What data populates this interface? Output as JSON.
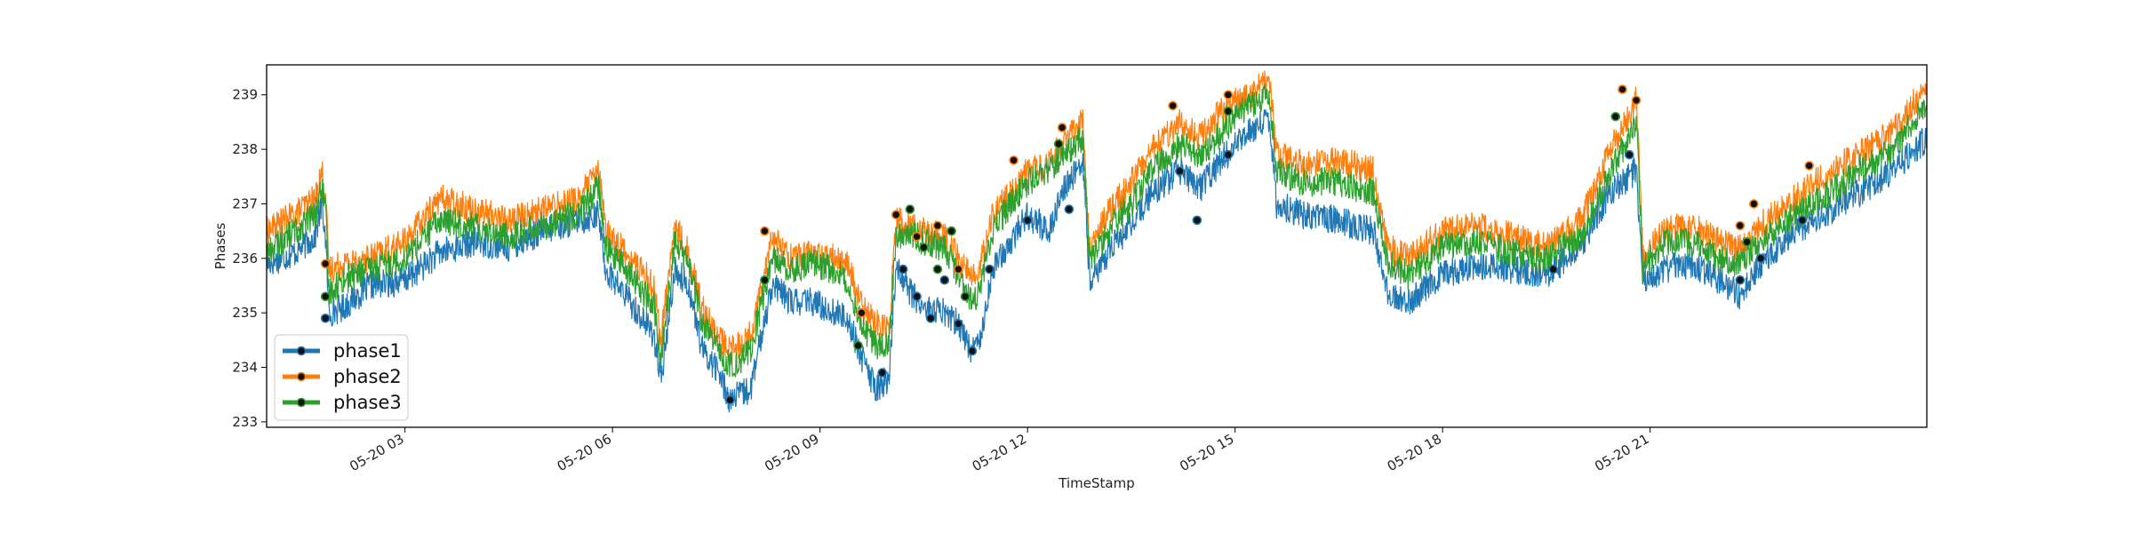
{
  "chart_data": {
    "type": "line",
    "title": "",
    "xlabel": "TimeStamp",
    "ylabel": "Phases",
    "x_range": [
      "05-20 00:00",
      "05-20 23:59"
    ],
    "xlim_hours": [
      1,
      25
    ],
    "ylim": [
      232.9,
      239.55
    ],
    "y_ticks": [
      233,
      234,
      235,
      236,
      237,
      238,
      239
    ],
    "x_ticks": [
      {
        "label": "05-20 03",
        "hour": 3
      },
      {
        "label": "05-20 06",
        "hour": 6
      },
      {
        "label": "05-20 09",
        "hour": 9
      },
      {
        "label": "05-20 12",
        "hour": 12
      },
      {
        "label": "05-20 15",
        "hour": 15
      },
      {
        "label": "05-20 18",
        "hour": 18
      },
      {
        "label": "05-20 21",
        "hour": 21
      }
    ],
    "legend_position": "bottom-left",
    "grid": false,
    "series": [
      {
        "name": "phase1",
        "color": "#1f77b4",
        "values": [
          [
            1.0,
            235.9
          ],
          [
            1.4,
            236.1
          ],
          [
            1.7,
            236.4
          ],
          [
            1.8,
            237.0
          ],
          [
            1.85,
            236.4
          ],
          [
            1.9,
            235.0
          ],
          [
            2.1,
            235.1
          ],
          [
            2.5,
            235.5
          ],
          [
            3.0,
            235.6
          ],
          [
            3.5,
            236.1
          ],
          [
            4.0,
            236.3
          ],
          [
            4.5,
            236.2
          ],
          [
            5.0,
            236.5
          ],
          [
            5.5,
            236.7
          ],
          [
            5.8,
            236.8
          ],
          [
            5.9,
            235.8
          ],
          [
            6.2,
            235.3
          ],
          [
            6.6,
            234.6
          ],
          [
            6.7,
            233.7
          ],
          [
            6.9,
            235.8
          ],
          [
            7.1,
            235.5
          ],
          [
            7.3,
            234.3
          ],
          [
            7.5,
            234.0
          ],
          [
            7.7,
            233.4
          ],
          [
            8.0,
            233.6
          ],
          [
            8.3,
            235.5
          ],
          [
            8.6,
            235.2
          ],
          [
            8.9,
            235.2
          ],
          [
            9.2,
            235.0
          ],
          [
            9.4,
            234.9
          ],
          [
            9.6,
            234.2
          ],
          [
            9.8,
            233.6
          ],
          [
            10.0,
            233.8
          ],
          [
            10.1,
            235.9
          ],
          [
            10.3,
            235.4
          ],
          [
            10.5,
            235.1
          ],
          [
            10.8,
            235.0
          ],
          [
            11.0,
            234.8
          ],
          [
            11.2,
            234.3
          ],
          [
            11.3,
            234.5
          ],
          [
            11.5,
            235.8
          ],
          [
            11.7,
            236.2
          ],
          [
            12.0,
            236.8
          ],
          [
            12.3,
            236.5
          ],
          [
            12.5,
            237.2
          ],
          [
            12.8,
            237.8
          ],
          [
            12.9,
            235.5
          ],
          [
            13.2,
            236.2
          ],
          [
            13.5,
            236.6
          ],
          [
            13.8,
            237.2
          ],
          [
            14.2,
            237.6
          ],
          [
            14.5,
            237.3
          ],
          [
            14.8,
            237.8
          ],
          [
            15.2,
            238.3
          ],
          [
            15.5,
            238.6
          ],
          [
            15.6,
            237.0
          ],
          [
            16.0,
            236.8
          ],
          [
            16.5,
            236.7
          ],
          [
            17.0,
            236.5
          ],
          [
            17.2,
            235.4
          ],
          [
            17.5,
            235.2
          ],
          [
            18.0,
            235.7
          ],
          [
            18.5,
            235.9
          ],
          [
            19.0,
            235.8
          ],
          [
            19.5,
            235.7
          ],
          [
            20.0,
            236.2
          ],
          [
            20.4,
            237.2
          ],
          [
            20.8,
            237.6
          ],
          [
            20.9,
            235.6
          ],
          [
            21.2,
            235.8
          ],
          [
            21.6,
            235.9
          ],
          [
            22.0,
            235.6
          ],
          [
            22.3,
            235.3
          ],
          [
            22.6,
            235.9
          ],
          [
            23.0,
            236.4
          ],
          [
            23.5,
            236.8
          ],
          [
            24.0,
            237.2
          ],
          [
            24.5,
            237.6
          ],
          [
            25.0,
            238.2
          ]
        ]
      },
      {
        "name": "phase2",
        "color": "#ff7f0e",
        "values": [
          [
            1.0,
            236.5
          ],
          [
            1.4,
            236.8
          ],
          [
            1.7,
            237.1
          ],
          [
            1.8,
            237.6
          ],
          [
            1.85,
            237.2
          ],
          [
            1.9,
            235.8
          ],
          [
            2.1,
            235.9
          ],
          [
            2.5,
            236.0
          ],
          [
            3.0,
            236.3
          ],
          [
            3.5,
            237.1
          ],
          [
            4.0,
            236.9
          ],
          [
            4.5,
            236.7
          ],
          [
            5.0,
            236.9
          ],
          [
            5.5,
            237.1
          ],
          [
            5.8,
            237.6
          ],
          [
            5.9,
            236.5
          ],
          [
            6.2,
            236.1
          ],
          [
            6.6,
            235.5
          ],
          [
            6.7,
            234.5
          ],
          [
            6.9,
            236.6
          ],
          [
            7.1,
            236.1
          ],
          [
            7.3,
            235.1
          ],
          [
            7.5,
            234.6
          ],
          [
            7.7,
            234.3
          ],
          [
            8.0,
            234.6
          ],
          [
            8.3,
            236.4
          ],
          [
            8.6,
            236.0
          ],
          [
            8.9,
            236.1
          ],
          [
            9.2,
            236.0
          ],
          [
            9.4,
            235.9
          ],
          [
            9.6,
            235.1
          ],
          [
            9.8,
            234.8
          ],
          [
            10.0,
            234.8
          ],
          [
            10.1,
            236.7
          ],
          [
            10.3,
            236.6
          ],
          [
            10.5,
            236.5
          ],
          [
            10.8,
            236.4
          ],
          [
            11.0,
            236.0
          ],
          [
            11.2,
            235.6
          ],
          [
            11.3,
            235.8
          ],
          [
            11.5,
            236.8
          ],
          [
            11.7,
            237.1
          ],
          [
            12.0,
            237.6
          ],
          [
            12.3,
            237.7
          ],
          [
            12.5,
            238.1
          ],
          [
            12.8,
            238.5
          ],
          [
            12.9,
            236.2
          ],
          [
            13.2,
            236.9
          ],
          [
            13.5,
            237.4
          ],
          [
            13.8,
            238.0
          ],
          [
            14.2,
            238.5
          ],
          [
            14.5,
            238.2
          ],
          [
            14.8,
            238.7
          ],
          [
            15.2,
            239.0
          ],
          [
            15.5,
            239.3
          ],
          [
            15.6,
            237.9
          ],
          [
            16.0,
            237.7
          ],
          [
            16.5,
            237.8
          ],
          [
            17.0,
            237.6
          ],
          [
            17.2,
            236.2
          ],
          [
            17.5,
            236.0
          ],
          [
            18.0,
            236.5
          ],
          [
            18.5,
            236.6
          ],
          [
            19.0,
            236.4
          ],
          [
            19.5,
            236.2
          ],
          [
            20.0,
            236.7
          ],
          [
            20.4,
            237.9
          ],
          [
            20.8,
            238.9
          ],
          [
            20.9,
            236.0
          ],
          [
            21.2,
            236.5
          ],
          [
            21.6,
            236.6
          ],
          [
            22.0,
            236.3
          ],
          [
            22.3,
            236.2
          ],
          [
            22.6,
            236.6
          ],
          [
            23.0,
            237.0
          ],
          [
            23.5,
            237.5
          ],
          [
            24.0,
            237.9
          ],
          [
            24.5,
            238.3
          ],
          [
            25.0,
            239.2
          ]
        ]
      },
      {
        "name": "phase3",
        "color": "#2ca02c",
        "values": [
          [
            1.0,
            236.1
          ],
          [
            1.4,
            236.5
          ],
          [
            1.7,
            236.8
          ],
          [
            1.8,
            237.3
          ],
          [
            1.85,
            236.9
          ],
          [
            1.9,
            235.4
          ],
          [
            2.1,
            235.6
          ],
          [
            2.5,
            235.8
          ],
          [
            3.0,
            236.0
          ],
          [
            3.5,
            236.7
          ],
          [
            4.0,
            236.6
          ],
          [
            4.5,
            236.4
          ],
          [
            5.0,
            236.6
          ],
          [
            5.5,
            236.8
          ],
          [
            5.8,
            237.3
          ],
          [
            5.9,
            236.2
          ],
          [
            6.2,
            235.8
          ],
          [
            6.6,
            235.1
          ],
          [
            6.7,
            234.1
          ],
          [
            6.9,
            236.3
          ],
          [
            7.1,
            235.9
          ],
          [
            7.3,
            234.8
          ],
          [
            7.5,
            234.4
          ],
          [
            7.7,
            234.0
          ],
          [
            8.0,
            234.3
          ],
          [
            8.3,
            236.0
          ],
          [
            8.6,
            235.8
          ],
          [
            8.9,
            235.9
          ],
          [
            9.2,
            235.8
          ],
          [
            9.4,
            235.6
          ],
          [
            9.6,
            234.8
          ],
          [
            9.8,
            234.4
          ],
          [
            10.0,
            234.5
          ],
          [
            10.1,
            236.4
          ],
          [
            10.3,
            236.5
          ],
          [
            10.5,
            236.3
          ],
          [
            10.8,
            236.2
          ],
          [
            11.0,
            235.7
          ],
          [
            11.2,
            235.2
          ],
          [
            11.3,
            235.4
          ],
          [
            11.5,
            236.5
          ],
          [
            11.7,
            236.9
          ],
          [
            12.0,
            237.4
          ],
          [
            12.3,
            237.6
          ],
          [
            12.5,
            237.9
          ],
          [
            12.8,
            238.2
          ],
          [
            12.9,
            235.9
          ],
          [
            13.2,
            236.6
          ],
          [
            13.5,
            237.0
          ],
          [
            13.8,
            237.6
          ],
          [
            14.2,
            238.1
          ],
          [
            14.5,
            237.9
          ],
          [
            14.8,
            238.3
          ],
          [
            15.2,
            238.8
          ],
          [
            15.5,
            239.0
          ],
          [
            15.6,
            237.6
          ],
          [
            16.0,
            237.4
          ],
          [
            16.5,
            237.4
          ],
          [
            17.0,
            237.2
          ],
          [
            17.2,
            235.9
          ],
          [
            17.5,
            235.7
          ],
          [
            18.0,
            236.2
          ],
          [
            18.5,
            236.3
          ],
          [
            19.0,
            236.1
          ],
          [
            19.5,
            236.0
          ],
          [
            20.0,
            236.4
          ],
          [
            20.4,
            237.5
          ],
          [
            20.8,
            238.5
          ],
          [
            20.9,
            235.8
          ],
          [
            21.2,
            236.3
          ],
          [
            21.6,
            236.3
          ],
          [
            22.0,
            236.0
          ],
          [
            22.3,
            235.9
          ],
          [
            22.6,
            236.3
          ],
          [
            23.0,
            236.7
          ],
          [
            23.5,
            237.1
          ],
          [
            24.0,
            237.6
          ],
          [
            24.5,
            238.0
          ],
          [
            25.0,
            238.8
          ]
        ]
      }
    ],
    "anomaly_points": [
      {
        "series": "phase1",
        "points": [
          [
            1.85,
            234.9
          ],
          [
            7.7,
            233.4
          ],
          [
            9.9,
            233.9
          ],
          [
            10.2,
            235.8
          ],
          [
            10.4,
            235.3
          ],
          [
            10.6,
            234.9
          ],
          [
            10.8,
            235.6
          ],
          [
            11.0,
            234.8
          ],
          [
            11.2,
            234.3
          ],
          [
            11.45,
            235.8
          ],
          [
            12.0,
            236.7
          ],
          [
            12.6,
            236.9
          ],
          [
            14.2,
            237.6
          ],
          [
            14.45,
            236.7
          ],
          [
            14.9,
            237.9
          ],
          [
            19.6,
            235.8
          ],
          [
            20.7,
            237.9
          ],
          [
            22.3,
            235.6
          ],
          [
            22.6,
            236.0
          ],
          [
            23.2,
            236.7
          ]
        ]
      },
      {
        "series": "phase2",
        "points": [
          [
            1.85,
            235.9
          ],
          [
            8.2,
            236.5
          ],
          [
            9.6,
            235.0
          ],
          [
            10.1,
            236.8
          ],
          [
            10.4,
            236.4
          ],
          [
            10.7,
            236.6
          ],
          [
            11.0,
            235.8
          ],
          [
            11.8,
            237.8
          ],
          [
            12.5,
            238.4
          ],
          [
            14.1,
            238.8
          ],
          [
            14.9,
            239.0
          ],
          [
            20.6,
            239.1
          ],
          [
            20.8,
            238.9
          ],
          [
            22.3,
            236.6
          ],
          [
            22.5,
            237.0
          ],
          [
            23.3,
            237.7
          ]
        ]
      },
      {
        "series": "phase3",
        "points": [
          [
            1.85,
            235.3
          ],
          [
            8.2,
            235.6
          ],
          [
            9.55,
            234.4
          ],
          [
            10.3,
            236.9
          ],
          [
            10.5,
            236.2
          ],
          [
            10.7,
            235.8
          ],
          [
            10.9,
            236.5
          ],
          [
            11.1,
            235.3
          ],
          [
            12.45,
            238.1
          ],
          [
            14.9,
            238.7
          ],
          [
            20.5,
            238.6
          ],
          [
            22.4,
            236.3
          ]
        ]
      }
    ]
  }
}
